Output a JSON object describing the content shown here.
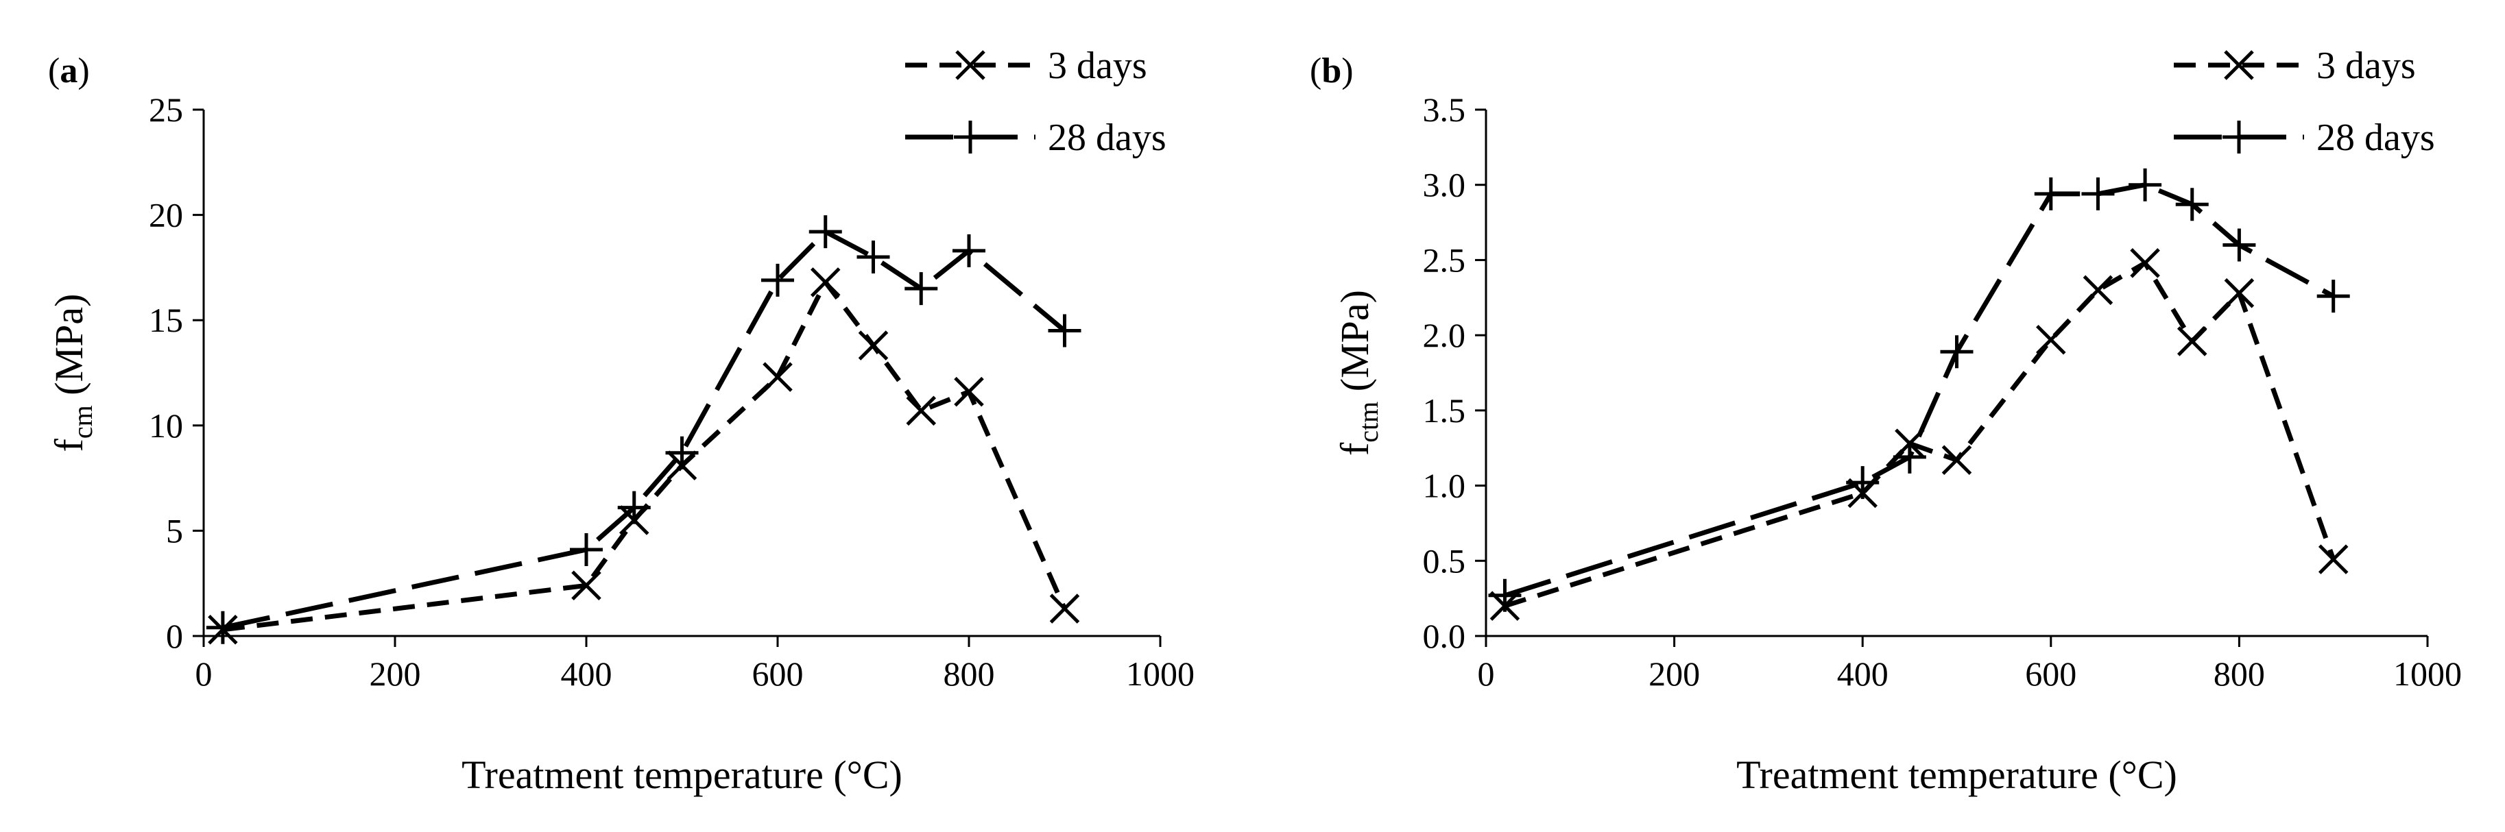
{
  "chart_data": [
    {
      "panel_label": "(a)",
      "type": "line",
      "xlabel": "Treatment temperature (°C)",
      "ylabel": "f",
      "ylabel_sub": "cm",
      "ylabel_unit": " (MPa)",
      "xlim": [
        0,
        1000
      ],
      "ylim": [
        0,
        25
      ],
      "xticks": [
        0,
        200,
        400,
        600,
        800,
        1000
      ],
      "yticks": [
        0,
        5,
        10,
        15,
        20,
        25
      ],
      "ytick_decimals": 0,
      "grid": false,
      "legend_position": "top-right",
      "series": [
        {
          "name": "3 days",
          "marker": "x",
          "dash": "short",
          "x": [
            20,
            400,
            450,
            500,
            600,
            650,
            700,
            750,
            800,
            900
          ],
          "values": [
            0.3,
            2.4,
            5.5,
            8.1,
            12.3,
            16.8,
            13.8,
            10.7,
            11.6,
            1.3
          ]
        },
        {
          "name": "28 days",
          "marker": "+",
          "dash": "long",
          "x": [
            20,
            400,
            450,
            500,
            600,
            650,
            700,
            750,
            800,
            900
          ],
          "values": [
            0.4,
            4.1,
            6.1,
            8.7,
            16.9,
            19.2,
            18.0,
            16.5,
            18.3,
            14.5
          ]
        }
      ]
    },
    {
      "panel_label": "(b)",
      "type": "line",
      "xlabel": "Treatment temperature (°C)",
      "ylabel": "f",
      "ylabel_sub": "ctm",
      "ylabel_unit": " (MPa)",
      "xlim": [
        0,
        1000
      ],
      "ylim": [
        0,
        3.5
      ],
      "xticks": [
        0,
        200,
        400,
        600,
        800,
        1000
      ],
      "yticks": [
        0,
        0.5,
        1.0,
        1.5,
        2.0,
        2.5,
        3.0,
        3.5
      ],
      "ytick_decimals": 1,
      "grid": false,
      "legend_position": "top-right",
      "series": [
        {
          "name": "3 days",
          "marker": "x",
          "dash": "short",
          "x": [
            20,
            400,
            450,
            500,
            600,
            650,
            700,
            750,
            800,
            900
          ],
          "values": [
            0.2,
            0.95,
            1.28,
            1.17,
            1.97,
            2.3,
            2.48,
            1.96,
            2.28,
            0.51
          ]
        },
        {
          "name": "28 days",
          "marker": "+",
          "dash": "long",
          "x": [
            20,
            400,
            450,
            500,
            600,
            650,
            700,
            750,
            800,
            900
          ],
          "values": [
            0.27,
            1.02,
            1.19,
            1.89,
            2.94,
            2.94,
            3.0,
            2.87,
            2.6,
            2.26
          ]
        }
      ]
    }
  ]
}
